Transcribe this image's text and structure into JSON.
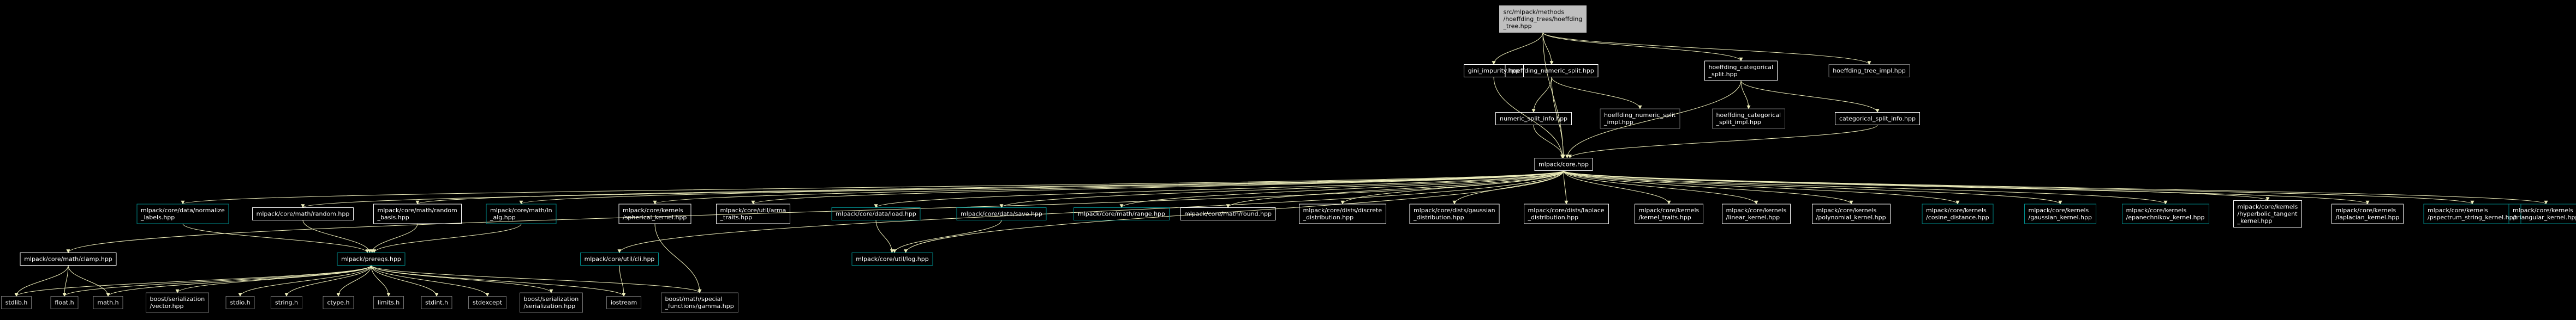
{
  "colors": {
    "background": "#000000",
    "edge": "#eeeebb",
    "box_default": "#ffffff",
    "box_linked": "#008b8b",
    "box_missing": "#bfbfbf",
    "box_root_fill": "#bfbfbf",
    "text": "#ffffff",
    "root_text": "#000000"
  },
  "nodes": [
    {
      "id": "root",
      "kind": "root",
      "lines": [
        "src/mlpack/methods",
        "/hoeffding_trees/hoeffding",
        "_tree.hpp"
      ]
    },
    {
      "id": "gini",
      "kind": "default",
      "lines": [
        "gini_impurity.hpp"
      ]
    },
    {
      "id": "hnsplit",
      "kind": "default",
      "lines": [
        "hoeffding_numeric_split.hpp"
      ]
    },
    {
      "id": "hcsplit",
      "kind": "default",
      "lines": [
        "hoeffding_categorical",
        "_split.hpp"
      ]
    },
    {
      "id": "htimpl",
      "kind": "missing",
      "lines": [
        "hoeffding_tree_impl.hpp"
      ]
    },
    {
      "id": "nsinfo",
      "kind": "default",
      "lines": [
        "numeric_split_info.hpp"
      ]
    },
    {
      "id": "hnsimpl",
      "kind": "missing",
      "lines": [
        "hoeffding_numeric_split",
        "_impl.hpp"
      ]
    },
    {
      "id": "hcsimpl",
      "kind": "missing",
      "lines": [
        "hoeffding_categorical",
        "_split_impl.hpp"
      ]
    },
    {
      "id": "csinfo",
      "kind": "default",
      "lines": [
        "categorical_split_info.hpp"
      ]
    },
    {
      "id": "core",
      "kind": "default",
      "lines": [
        "mlpack/core.hpp"
      ]
    },
    {
      "id": "normalize",
      "kind": "linked",
      "lines": [
        "mlpack/core/data/normalize",
        "_labels.hpp"
      ]
    },
    {
      "id": "mrandom",
      "kind": "default",
      "lines": [
        "mlpack/core/math/random.hpp"
      ]
    },
    {
      "id": "mrbasis",
      "kind": "default",
      "lines": [
        "mlpack/core/math/random",
        "_basis.hpp"
      ]
    },
    {
      "id": "lnalg",
      "kind": "linked",
      "lines": [
        "mlpack/core/math/ln",
        "_alg.hpp"
      ]
    },
    {
      "id": "sphkern",
      "kind": "default",
      "lines": [
        "mlpack/core/kernels",
        "/spherical_kernel.hpp"
      ]
    },
    {
      "id": "arma",
      "kind": "default",
      "lines": [
        "mlpack/core/util/arma",
        "_traits.hpp"
      ]
    },
    {
      "id": "load",
      "kind": "linked",
      "lines": [
        "mlpack/core/data/load.hpp"
      ]
    },
    {
      "id": "save",
      "kind": "linked",
      "lines": [
        "mlpack/core/data/save.hpp"
      ]
    },
    {
      "id": "range",
      "kind": "linked",
      "lines": [
        "mlpack/core/math/range.hpp"
      ]
    },
    {
      "id": "round",
      "kind": "default",
      "lines": [
        "mlpack/core/math/round.hpp"
      ]
    },
    {
      "id": "discrete",
      "kind": "default",
      "lines": [
        "mlpack/core/dists/discrete",
        "_distribution.hpp"
      ]
    },
    {
      "id": "gaussdist",
      "kind": "default",
      "lines": [
        "mlpack/core/dists/gaussian",
        "_distribution.hpp"
      ]
    },
    {
      "id": "laplacedist",
      "kind": "default",
      "lines": [
        "mlpack/core/dists/laplace",
        "_distribution.hpp"
      ]
    },
    {
      "id": "ktraits",
      "kind": "default",
      "lines": [
        "mlpack/core/kernels",
        "/kernel_traits.hpp"
      ]
    },
    {
      "id": "linear",
      "kind": "default",
      "lines": [
        "mlpack/core/kernels",
        "/linear_kernel.hpp"
      ]
    },
    {
      "id": "poly",
      "kind": "default",
      "lines": [
        "mlpack/core/kernels",
        "/polynomial_kernel.hpp"
      ]
    },
    {
      "id": "cosine",
      "kind": "linked",
      "lines": [
        "mlpack/core/kernels",
        "/cosine_distance.hpp"
      ]
    },
    {
      "id": "gausskern",
      "kind": "linked",
      "lines": [
        "mlpack/core/kernels",
        "/gaussian_kernel.hpp"
      ]
    },
    {
      "id": "epan",
      "kind": "linked",
      "lines": [
        "mlpack/core/kernels",
        "/epanechnikov_kernel.hpp"
      ]
    },
    {
      "id": "hyptan",
      "kind": "default",
      "lines": [
        "mlpack/core/kernels",
        "/hyperbolic_tangent",
        "_kernel.hpp"
      ]
    },
    {
      "id": "laplacekern",
      "kind": "default",
      "lines": [
        "mlpack/core/kernels",
        "/laplacian_kernel.hpp"
      ]
    },
    {
      "id": "pspectrum",
      "kind": "linked",
      "lines": [
        "mlpack/core/kernels",
        "/pspectrum_string_kernel.hpp"
      ]
    },
    {
      "id": "triangular",
      "kind": "linked",
      "lines": [
        "mlpack/core/kernels",
        "/triangular_kernel.hpp"
      ]
    },
    {
      "id": "clamp",
      "kind": "default",
      "lines": [
        "mlpack/core/math/clamp.hpp"
      ]
    },
    {
      "id": "prereqs",
      "kind": "linked",
      "lines": [
        "mlpack/prereqs.hpp"
      ]
    },
    {
      "id": "cli",
      "kind": "linked",
      "lines": [
        "mlpack/core/util/cli.hpp"
      ]
    },
    {
      "id": "log",
      "kind": "linked",
      "lines": [
        "mlpack/core/util/log.hpp"
      ]
    },
    {
      "id": "stdlib",
      "kind": "missing",
      "lines": [
        "stdlib.h"
      ]
    },
    {
      "id": "float",
      "kind": "missing",
      "lines": [
        "float.h"
      ]
    },
    {
      "id": "math",
      "kind": "missing",
      "lines": [
        "math.h"
      ]
    },
    {
      "id": "bsvector",
      "kind": "missing",
      "lines": [
        "boost/serialization",
        "/vector.hpp"
      ]
    },
    {
      "id": "stdio",
      "kind": "missing",
      "lines": [
        "stdio.h"
      ]
    },
    {
      "id": "string",
      "kind": "missing",
      "lines": [
        "string.h"
      ]
    },
    {
      "id": "ctype",
      "kind": "missing",
      "lines": [
        "ctype.h"
      ]
    },
    {
      "id": "limits",
      "kind": "missing",
      "lines": [
        "limits.h"
      ]
    },
    {
      "id": "stdint",
      "kind": "missing",
      "lines": [
        "stdint.h"
      ]
    },
    {
      "id": "stdexcept",
      "kind": "missing",
      "lines": [
        "stdexcept"
      ]
    },
    {
      "id": "bsser",
      "kind": "missing",
      "lines": [
        "boost/serialization",
        "/serialization.hpp"
      ]
    },
    {
      "id": "iostream",
      "kind": "missing",
      "lines": [
        "iostream"
      ]
    },
    {
      "id": "gamma",
      "kind": "missing",
      "lines": [
        "boost/math/special",
        "_functions/gamma.hpp"
      ]
    }
  ],
  "edges": [
    [
      "root",
      "gini"
    ],
    [
      "root",
      "hnsplit"
    ],
    [
      "root",
      "hcsplit"
    ],
    [
      "root",
      "htimpl"
    ],
    [
      "root",
      "core"
    ],
    [
      "hnsplit",
      "nsinfo"
    ],
    [
      "hnsplit",
      "hnsimpl"
    ],
    [
      "hnsplit",
      "core"
    ],
    [
      "hcsplit",
      "hcsimpl"
    ],
    [
      "hcsplit",
      "csinfo"
    ],
    [
      "hcsplit",
      "core"
    ],
    [
      "gini",
      "core"
    ],
    [
      "nsinfo",
      "core"
    ],
    [
      "csinfo",
      "core"
    ],
    [
      "core",
      "clamp"
    ],
    [
      "core",
      "normalize"
    ],
    [
      "core",
      "mrandom"
    ],
    [
      "core",
      "mrbasis"
    ],
    [
      "core",
      "lnalg"
    ],
    [
      "core",
      "cli"
    ],
    [
      "core",
      "sphkern"
    ],
    [
      "core",
      "arma"
    ],
    [
      "core",
      "load"
    ],
    [
      "core",
      "save"
    ],
    [
      "core",
      "range"
    ],
    [
      "core",
      "round"
    ],
    [
      "core",
      "discrete"
    ],
    [
      "core",
      "gaussdist"
    ],
    [
      "core",
      "laplacedist"
    ],
    [
      "core",
      "ktraits"
    ],
    [
      "core",
      "linear"
    ],
    [
      "core",
      "poly"
    ],
    [
      "core",
      "cosine"
    ],
    [
      "core",
      "gausskern"
    ],
    [
      "core",
      "epan"
    ],
    [
      "core",
      "hyptan"
    ],
    [
      "core",
      "laplacekern"
    ],
    [
      "core",
      "pspectrum"
    ],
    [
      "core",
      "triangular"
    ],
    [
      "core",
      "log"
    ],
    [
      "normalize",
      "prereqs"
    ],
    [
      "mrandom",
      "prereqs"
    ],
    [
      "mrbasis",
      "prereqs"
    ],
    [
      "lnalg",
      "prereqs"
    ],
    [
      "sphkern",
      "gamma"
    ],
    [
      "load",
      "log"
    ],
    [
      "save",
      "log"
    ],
    [
      "cli",
      "iostream"
    ],
    [
      "clamp",
      "stdlib"
    ],
    [
      "clamp",
      "float"
    ],
    [
      "clamp",
      "math"
    ],
    [
      "prereqs",
      "stdlib"
    ],
    [
      "prereqs",
      "float"
    ],
    [
      "prereqs",
      "math"
    ],
    [
      "prereqs",
      "bsvector"
    ],
    [
      "prereqs",
      "stdio"
    ],
    [
      "prereqs",
      "string"
    ],
    [
      "prereqs",
      "ctype"
    ],
    [
      "prereqs",
      "limits"
    ],
    [
      "prereqs",
      "stdint"
    ],
    [
      "prereqs",
      "stdexcept"
    ],
    [
      "prereqs",
      "bsser"
    ],
    [
      "prereqs",
      "iostream"
    ],
    [
      "prereqs",
      "gamma"
    ]
  ]
}
